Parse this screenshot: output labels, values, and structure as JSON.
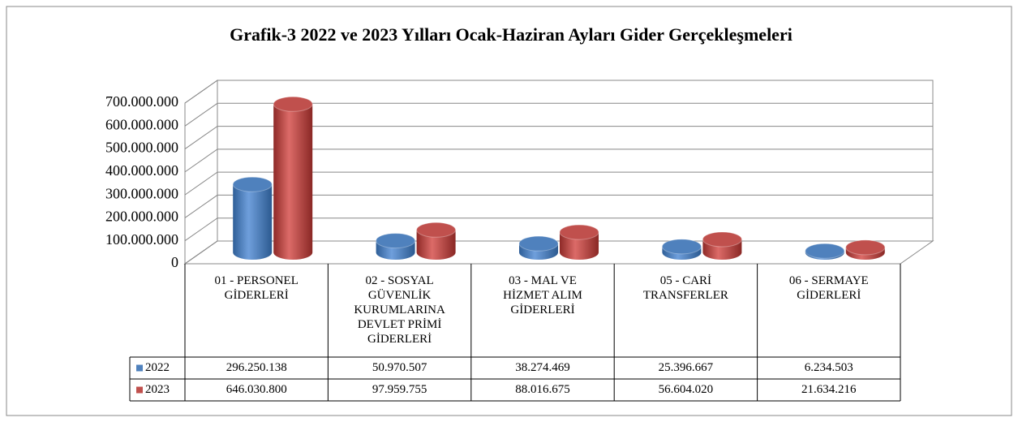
{
  "chart_data": {
    "type": "bar",
    "title": "Grafik-3   2022 ve 2023 Yılları Ocak-Haziran Ayları Gider Gerçekleşmeleri",
    "categories": [
      "01 - PERSONEL GİDERLERİ",
      "02 - SOSYAL GÜVENLİK KURUMLARINA DEVLET PRİMİ GİDERLERİ",
      "03 - MAL VE HİZMET ALIM GİDERLERİ",
      "05 - CARİ TRANSFERLER",
      "06 - SERMAYE GİDERLERİ"
    ],
    "series": [
      {
        "name": "2022",
        "color": "#4f81bd",
        "values": [
          296250138,
          50970507,
          38274469,
          25396667,
          6234503
        ],
        "value_labels": [
          "296.250.138",
          "50.970.507",
          "38.274.469",
          "25.396.667",
          "6.234.503"
        ]
      },
      {
        "name": "2023",
        "color": "#c0504d",
        "values": [
          646030800,
          97959755,
          88016675,
          56604020,
          21634216
        ],
        "value_labels": [
          "646.030.800",
          "97.959.755",
          "88.016.675",
          "56.604.020",
          "21.634.216"
        ]
      }
    ],
    "ylim": [
      0,
      700000000
    ],
    "yticks": [
      0,
      {
        "value": 100000000,
        "label": "100.000.000"
      },
      {
        "value": 200000000,
        "label": "200.000.000"
      },
      {
        "value": 300000000,
        "label": "300.000.000"
      },
      {
        "value": 400000000,
        "label": "400.000.000"
      },
      {
        "value": 500000000,
        "label": "500.000.000"
      },
      {
        "value": 600000000,
        "label": "600.000.000"
      },
      {
        "value": 700000000,
        "label": "700.000.000"
      }
    ],
    "grid": true
  }
}
